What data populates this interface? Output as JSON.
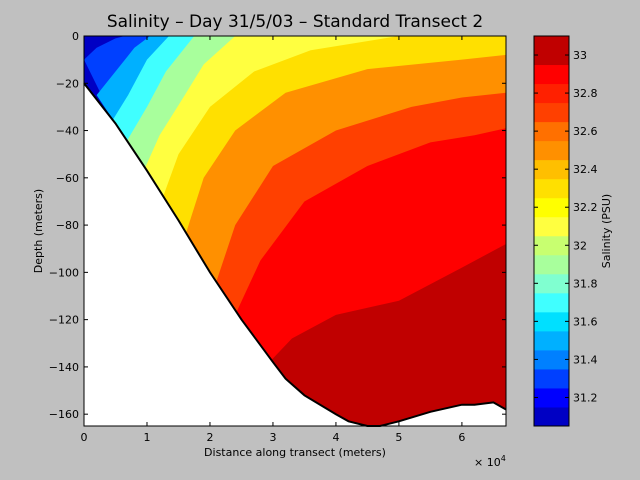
{
  "chart_data": {
    "type": "heatmap",
    "title": "Salinity – Day 31/5/03 – Standard Transect 2",
    "xlabel": "Distance along transect (meters)",
    "ylabel": "Depth (meters)",
    "x_multiplier": "× 10",
    "x_multiplier_exp": "4",
    "xlim": [
      0,
      67000
    ],
    "ylim": [
      -165,
      0
    ],
    "x_ticks": [
      0,
      10000,
      20000,
      30000,
      40000,
      50000,
      60000
    ],
    "x_tick_labels": [
      "0",
      "1",
      "2",
      "3",
      "4",
      "5",
      "6"
    ],
    "y_ticks": [
      0,
      -20,
      -40,
      -60,
      -80,
      -100,
      -120,
      -140,
      -160
    ],
    "y_tick_labels": [
      "0",
      "−20",
      "−40",
      "−60",
      "−80",
      "−100",
      "−120",
      "−140",
      "−160"
    ],
    "colorbar": {
      "label": "Salinity (PSU)",
      "range": [
        31.05,
        33.1
      ],
      "ticks": [
        31.2,
        31.4,
        31.6,
        31.8,
        32,
        32.2,
        32.4,
        32.6,
        32.8,
        33
      ],
      "tick_labels": [
        "31.2",
        "31.4",
        "31.6",
        "31.8",
        "32",
        "32.2",
        "32.4",
        "32.6",
        "32.8",
        "33"
      ],
      "levels": [
        31.05,
        31.15,
        31.25,
        31.35,
        31.45,
        31.55,
        31.65,
        31.75,
        31.85,
        31.95,
        32.05,
        32.15,
        32.25,
        32.35,
        32.45,
        32.55,
        32.65,
        32.75,
        32.85,
        32.95,
        33.1
      ]
    },
    "colors": [
      "#0000c4",
      "#0000ff",
      "#0040ff",
      "#0080ff",
      "#00b0ff",
      "#00e0ff",
      "#40ffff",
      "#80ffd0",
      "#a8ff9c",
      "#c8ff70",
      "#ffff40",
      "#ffff00",
      "#ffe000",
      "#ffbf00",
      "#ff9000",
      "#ff7000",
      "#ff4000",
      "#ff2000",
      "#ff0000",
      "#c00000"
    ],
    "bathymetry": {
      "x": [
        0,
        5000,
        10000,
        15000,
        20000,
        25000,
        30000,
        32000,
        35000,
        40000,
        42000,
        45000,
        47000,
        50000,
        55000,
        60000,
        62000,
        65000,
        67000
      ],
      "depth": [
        -20,
        -37,
        -57,
        -78,
        -100,
        -120,
        -138,
        -145,
        -152,
        -160,
        -163,
        -165,
        -165,
        -163,
        -159,
        -156,
        -156,
        -155,
        -158
      ]
    },
    "isohalines": [
      {
        "level": 31.2,
        "x": [
          0,
          2000,
          5000,
          6500
        ],
        "depth": [
          -10,
          -5,
          -1,
          0
        ]
      },
      {
        "level": 31.4,
        "x": [
          2000,
          5000,
          8000,
          10500
        ],
        "depth": [
          -25,
          -15,
          -5,
          0
        ]
      },
      {
        "level": 31.6,
        "x": [
          4000,
          7000,
          10000,
          13500
        ],
        "depth": [
          -38,
          -25,
          -10,
          0
        ]
      },
      {
        "level": 31.8,
        "x": [
          6000,
          10000,
          13000,
          17500
        ],
        "depth": [
          -48,
          -30,
          -15,
          0
        ]
      },
      {
        "level": 32.0,
        "x": [
          9000,
          12000,
          16000,
          19000,
          24000
        ],
        "depth": [
          -60,
          -42,
          -25,
          -12,
          0
        ]
      },
      {
        "level": 32.2,
        "x": [
          12000,
          15000,
          20000,
          27000,
          36000,
          50000
        ],
        "depth": [
          -72,
          -50,
          -30,
          -15,
          -6,
          0
        ]
      },
      {
        "level": 32.4,
        "x": [
          16000,
          19000,
          24000,
          32000,
          45000,
          60000,
          67000
        ],
        "depth": [
          -85,
          -60,
          -40,
          -24,
          -14,
          -10,
          -8
        ]
      },
      {
        "level": 32.6,
        "x": [
          21000,
          24000,
          30000,
          40000,
          52000,
          60000,
          67000
        ],
        "depth": [
          -104,
          -80,
          -55,
          -40,
          -30,
          -26,
          -24
        ]
      },
      {
        "level": 32.8,
        "x": [
          24000,
          28000,
          35000,
          45000,
          55000,
          62000,
          67000
        ],
        "depth": [
          -118,
          -95,
          -70,
          -55,
          -45,
          -42,
          -39
        ]
      },
      {
        "level": 33.0,
        "x": [
          28000,
          33000,
          40000,
          50000,
          60000,
          67000
        ],
        "depth": [
          -142,
          -128,
          -118,
          -112,
          -98,
          -88
        ]
      }
    ]
  }
}
